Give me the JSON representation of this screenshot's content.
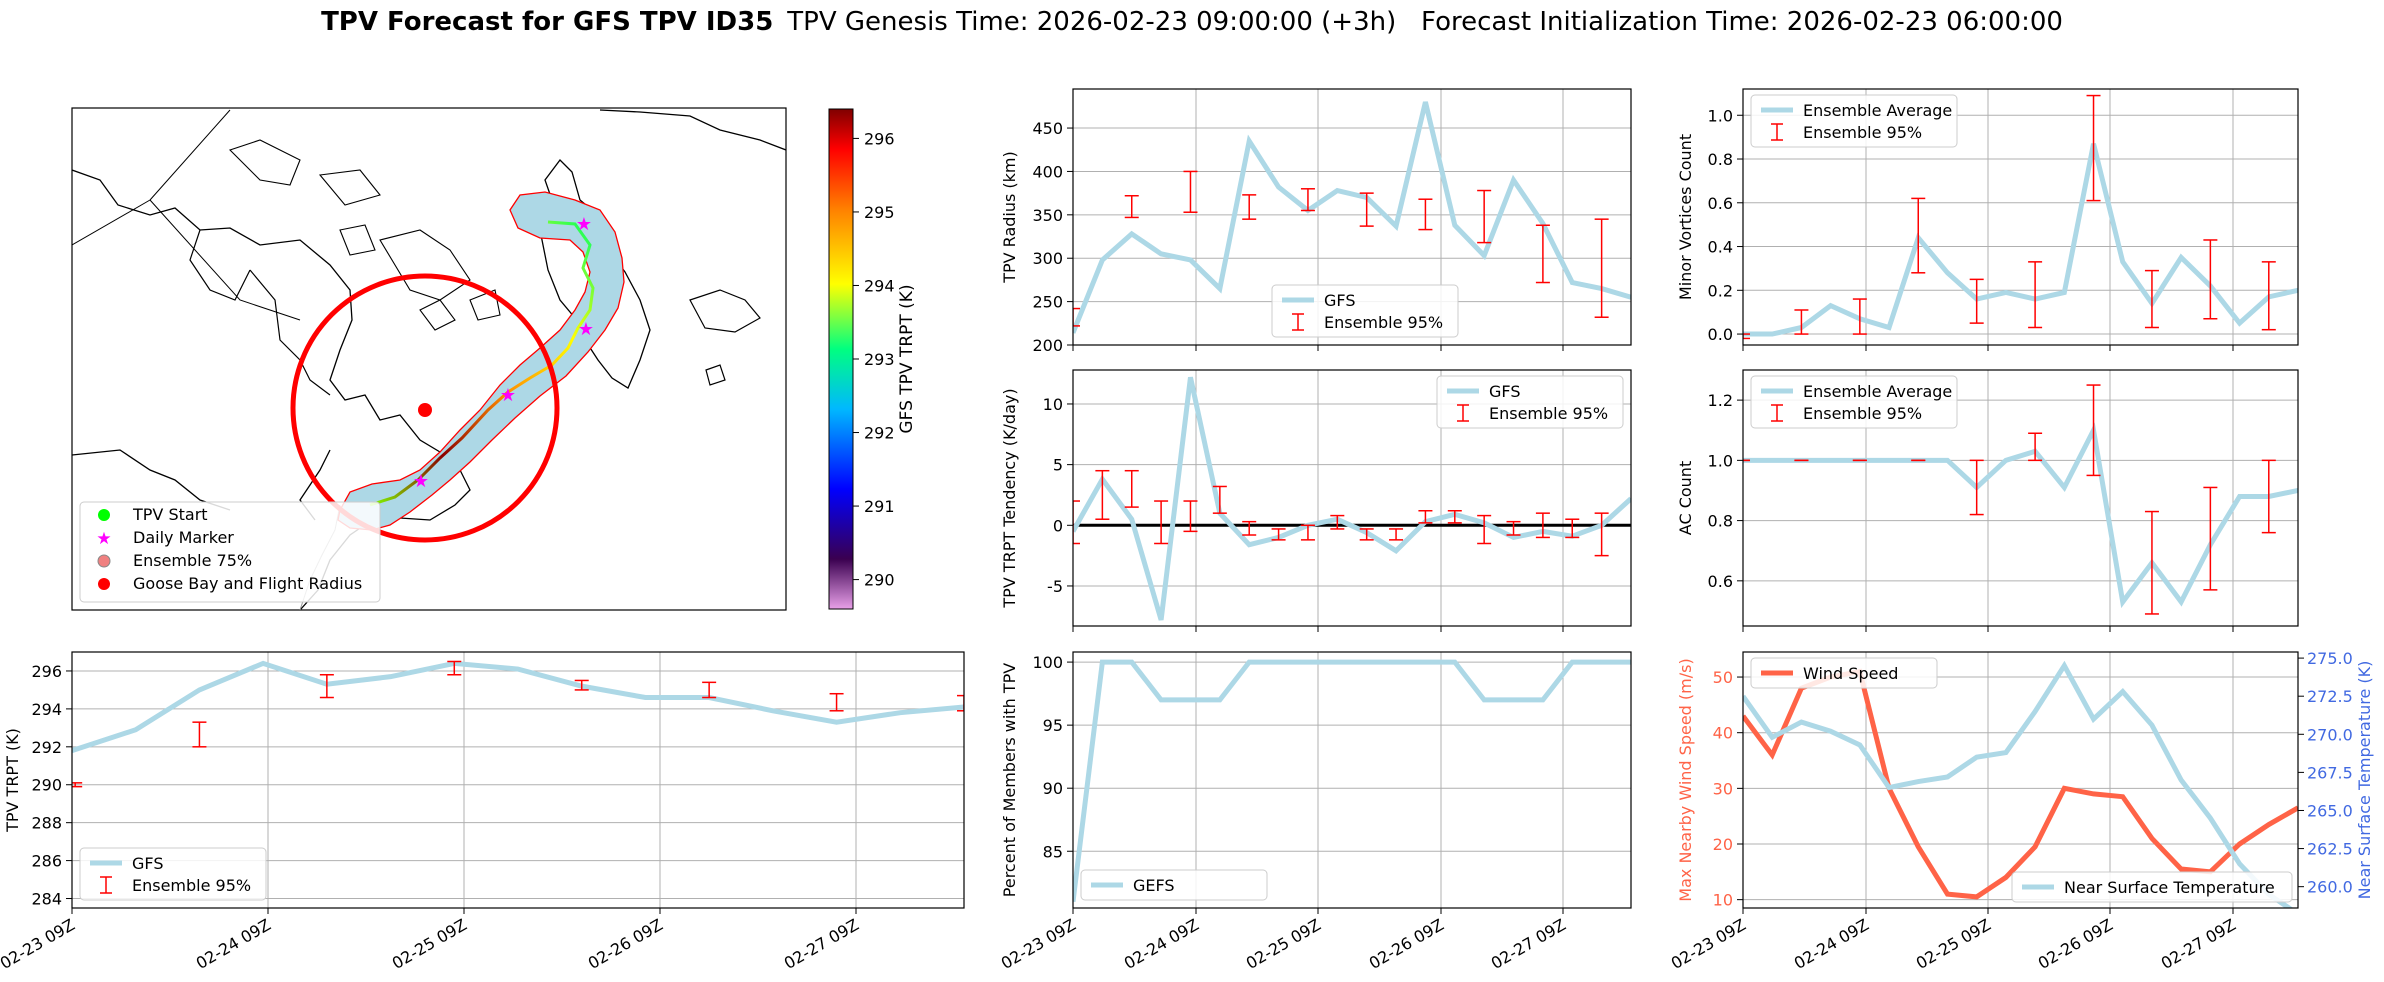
{
  "figure": {
    "title_bold": "TPV Forecast for GFS TPV ID35",
    "title_rest": "TPV Genesis Time: 2026-02-23 09:00:00 (+3h)   Forecast Initialization Time: 2026-02-23 06:00:00"
  },
  "x_ticks": [
    "02-23 09Z",
    "02-24 09Z",
    "02-25 09Z",
    "02-26 09Z",
    "02-27 09Z"
  ],
  "colors": {
    "gfs": "#add8e6",
    "ensemble": "#ff0000",
    "wind": "#ff6347",
    "temp_axis": "#4169e1",
    "zero_line": "#000000"
  },
  "map_panel": {
    "colorbar_label": "GFS TPV TRPT (K)",
    "colorbar_ticks": [
      "290",
      "291",
      "292",
      "293",
      "294",
      "295",
      "296"
    ],
    "colorbar_range": [
      289.6,
      296.4
    ],
    "legend": [
      "TPV Start",
      "Daily Marker",
      "Ensemble 75%",
      "Goose Bay and Flight Radius"
    ]
  },
  "chart_data": [
    {
      "id": "trpt",
      "type": "line",
      "title": "",
      "xlabel": "",
      "ylabel": "TPV TRPT (K)",
      "ylim": [
        283.5,
        297.0
      ],
      "yticks": [
        284,
        286,
        288,
        290,
        292,
        294,
        296
      ],
      "legend": [
        "GFS",
        "Ensemble 95%"
      ],
      "legend_loc": "lower-left",
      "x": [
        0,
        1,
        2,
        3,
        4,
        5,
        6,
        7,
        8,
        9,
        10,
        11,
        12,
        13,
        14
      ],
      "gfs": [
        291.8,
        292.9,
        295.0,
        296.4,
        295.3,
        295.7,
        296.4,
        296.1,
        295.2,
        294.6,
        294.6,
        293.9,
        293.3,
        293.8,
        294.1
      ],
      "ensemble": [
        {
          "x": 0.05,
          "lo": 289.9,
          "hi": 290.1
        },
        {
          "x": 2,
          "lo": 292.0,
          "hi": 293.3
        },
        {
          "x": 4,
          "lo": 294.6,
          "hi": 295.8
        },
        {
          "x": 6,
          "lo": 295.8,
          "hi": 296.5
        },
        {
          "x": 8,
          "lo": 295.0,
          "hi": 295.5
        },
        {
          "x": 10,
          "lo": 294.6,
          "hi": 295.4
        },
        {
          "x": 12,
          "lo": 293.9,
          "hi": 294.8
        },
        {
          "x": 14,
          "lo": 293.9,
          "hi": 294.7
        }
      ]
    },
    {
      "id": "radius",
      "type": "line",
      "title": "",
      "xlabel": "",
      "ylabel": "TPV Radius (km)",
      "ylim": [
        200,
        495
      ],
      "yticks": [
        200,
        250,
        300,
        350,
        400,
        450
      ],
      "legend": [
        "GFS",
        "Ensemble 95%"
      ],
      "legend_loc": "lower-center",
      "x": [
        0,
        1,
        2,
        3,
        4,
        5,
        6,
        7,
        8,
        9,
        10,
        11,
        12,
        13,
        14,
        15,
        16,
        17,
        18,
        19
      ],
      "gfs": [
        214,
        298,
        328,
        305,
        298,
        265,
        435,
        382,
        355,
        378,
        370,
        337,
        480,
        338,
        303,
        390,
        340,
        272,
        265,
        255
      ],
      "ensemble": [
        {
          "x": 0,
          "lo": 222,
          "hi": 242
        },
        {
          "x": 2,
          "lo": 347,
          "hi": 372
        },
        {
          "x": 4,
          "lo": 353,
          "hi": 400
        },
        {
          "x": 6,
          "lo": 345,
          "hi": 373
        },
        {
          "x": 8,
          "lo": 355,
          "hi": 380
        },
        {
          "x": 10,
          "lo": 337,
          "hi": 375
        },
        {
          "x": 12,
          "lo": 333,
          "hi": 368
        },
        {
          "x": 14,
          "lo": 318,
          "hi": 378
        },
        {
          "x": 16,
          "lo": 272,
          "hi": 338
        },
        {
          "x": 18,
          "lo": 232,
          "hi": 345
        }
      ]
    },
    {
      "id": "minor",
      "type": "line",
      "title": "",
      "xlabel": "",
      "ylabel": "Minor Vortices Count",
      "ylim": [
        -0.05,
        1.12
      ],
      "yticks": [
        0.0,
        0.2,
        0.4,
        0.6,
        0.8,
        1.0
      ],
      "legend": [
        "Ensemble Average",
        "Ensemble 95%"
      ],
      "legend_loc": "top-left",
      "x": [
        0,
        1,
        2,
        3,
        4,
        5,
        6,
        7,
        8,
        9,
        10,
        11,
        12,
        13,
        14,
        15,
        16,
        17,
        18,
        19
      ],
      "gfs": [
        0.0,
        0.0,
        0.03,
        0.13,
        0.07,
        0.03,
        0.44,
        0.28,
        0.16,
        0.19,
        0.16,
        0.19,
        0.87,
        0.33,
        0.14,
        0.35,
        0.22,
        0.05,
        0.17,
        0.2
      ],
      "ensemble": [
        {
          "x": 0,
          "lo": -0.02,
          "hi": 0.0
        },
        {
          "x": 2,
          "lo": 0.0,
          "hi": 0.11
        },
        {
          "x": 4,
          "lo": 0.0,
          "hi": 0.16
        },
        {
          "x": 6,
          "lo": 0.28,
          "hi": 0.62
        },
        {
          "x": 8,
          "lo": 0.05,
          "hi": 0.25
        },
        {
          "x": 10,
          "lo": 0.03,
          "hi": 0.33
        },
        {
          "x": 12,
          "lo": 0.61,
          "hi": 1.09
        },
        {
          "x": 14,
          "lo": 0.03,
          "hi": 0.29
        },
        {
          "x": 16,
          "lo": 0.07,
          "hi": 0.43
        },
        {
          "x": 18,
          "lo": 0.02,
          "hi": 0.33
        }
      ]
    },
    {
      "id": "tendency",
      "type": "line",
      "title": "",
      "xlabel": "",
      "ylabel": "TPV TRPT Tendency (K/day)",
      "ylim": [
        -8.3,
        12.8
      ],
      "yticks": [
        -5,
        0,
        5,
        10
      ],
      "legend": [
        "GFS",
        "Ensemble 95%"
      ],
      "legend_loc": "top-right",
      "x": [
        0,
        1,
        2,
        3,
        4,
        5,
        6,
        7,
        8,
        9,
        10,
        11,
        12,
        13,
        14,
        15,
        16,
        17,
        18,
        19
      ],
      "gfs": [
        -0.5,
        3.8,
        0.5,
        -7.8,
        12.2,
        1.0,
        -1.6,
        -1.0,
        0.0,
        0.5,
        -0.6,
        -2.1,
        0.3,
        0.9,
        0.2,
        -1.0,
        -0.5,
        -0.9,
        0.0,
        2.2
      ],
      "ensemble": [
        {
          "x": 0,
          "lo": -1.5,
          "hi": 2.0
        },
        {
          "x": 1,
          "lo": 0.5,
          "hi": 4.5
        },
        {
          "x": 2,
          "lo": 1.5,
          "hi": 4.5
        },
        {
          "x": 3,
          "lo": -1.5,
          "hi": 2.0
        },
        {
          "x": 4,
          "lo": -0.5,
          "hi": 2.0
        },
        {
          "x": 5,
          "lo": 1.0,
          "hi": 3.2
        },
        {
          "x": 6,
          "lo": -0.8,
          "hi": 0.3
        },
        {
          "x": 7,
          "lo": -1.2,
          "hi": -0.3
        },
        {
          "x": 8,
          "lo": -1.2,
          "hi": 0.0
        },
        {
          "x": 9,
          "lo": -0.3,
          "hi": 0.8
        },
        {
          "x": 10,
          "lo": -1.2,
          "hi": -0.3
        },
        {
          "x": 11,
          "lo": -1.2,
          "hi": -0.3
        },
        {
          "x": 12,
          "lo": 0.2,
          "hi": 1.2
        },
        {
          "x": 13,
          "lo": 0.2,
          "hi": 1.2
        },
        {
          "x": 14,
          "lo": -1.5,
          "hi": 0.8
        },
        {
          "x": 15,
          "lo": -0.8,
          "hi": 0.3
        },
        {
          "x": 16,
          "lo": -1.0,
          "hi": 1.0
        },
        {
          "x": 17,
          "lo": -1.0,
          "hi": 0.5
        },
        {
          "x": 18,
          "lo": -2.5,
          "hi": 1.0
        }
      ]
    },
    {
      "id": "ac",
      "type": "line",
      "title": "",
      "xlabel": "",
      "ylabel": "AC Count",
      "ylim": [
        0.45,
        1.3
      ],
      "yticks": [
        0.6,
        0.8,
        1.0,
        1.2
      ],
      "legend": [
        "Ensemble Average",
        "Ensemble 95%"
      ],
      "legend_loc": "top-left",
      "x": [
        0,
        1,
        2,
        3,
        4,
        5,
        6,
        7,
        8,
        9,
        10,
        11,
        12,
        13,
        14,
        15,
        16,
        17,
        18,
        19
      ],
      "gfs": [
        1.0,
        1.0,
        1.0,
        1.0,
        1.0,
        1.0,
        1.0,
        1.0,
        0.91,
        1.0,
        1.03,
        0.91,
        1.1,
        0.53,
        0.66,
        0.53,
        0.72,
        0.88,
        0.88,
        0.9
      ],
      "ensemble": [
        {
          "x": 0,
          "lo": 1.0,
          "hi": 1.0
        },
        {
          "x": 2,
          "lo": 1.0,
          "hi": 1.0
        },
        {
          "x": 4,
          "lo": 1.0,
          "hi": 1.0
        },
        {
          "x": 6,
          "lo": 1.0,
          "hi": 1.0
        },
        {
          "x": 8,
          "lo": 0.82,
          "hi": 1.0
        },
        {
          "x": 10,
          "lo": 1.0,
          "hi": 1.09
        },
        {
          "x": 12,
          "lo": 0.95,
          "hi": 1.25
        },
        {
          "x": 14,
          "lo": 0.49,
          "hi": 0.83
        },
        {
          "x": 16,
          "lo": 0.57,
          "hi": 0.91
        },
        {
          "x": 18,
          "lo": 0.76,
          "hi": 1.0
        }
      ]
    },
    {
      "id": "members",
      "type": "line",
      "title": "",
      "xlabel": "",
      "ylabel": "Percent of Members with TPV",
      "ylim": [
        80.5,
        100.8
      ],
      "yticks": [
        85,
        90,
        95,
        100
      ],
      "legend": [
        "GEFS"
      ],
      "legend_loc": "lower-left",
      "x": [
        0,
        1,
        2,
        3,
        4,
        5,
        6,
        7,
        8,
        9,
        10,
        11,
        12,
        13,
        14,
        15,
        16,
        17,
        18,
        19
      ],
      "gfs": [
        81,
        100,
        100,
        97,
        97,
        97,
        100,
        100,
        100,
        100,
        100,
        100,
        100,
        100,
        97,
        97,
        97,
        100,
        100,
        100
      ],
      "ensemble": []
    },
    {
      "id": "wind",
      "type": "line",
      "title": "",
      "xlabel": "",
      "ylabel": "Max Nearby Wind Speed (m/s)",
      "ylabel2": "Near Surface Temperature (K)",
      "ylim": [
        8.5,
        54.5
      ],
      "yticks": [
        10,
        20,
        30,
        40,
        50
      ],
      "ylim2": [
        258.6,
        275.4
      ],
      "yticks2": [
        260.0,
        262.5,
        265.0,
        267.5,
        270.0,
        272.5,
        275.0
      ],
      "legend": [
        "Wind Speed"
      ],
      "legend2": [
        "Near Surface Temperature"
      ],
      "legend_loc": "top-left",
      "legend2_loc": "lower-right",
      "x": [
        0,
        1,
        2,
        3,
        4,
        5,
        6,
        7,
        8,
        9,
        10,
        11,
        12,
        13,
        14,
        15,
        16,
        17,
        18,
        19
      ],
      "wind": [
        43,
        36,
        48,
        50,
        51,
        30,
        19.5,
        11,
        10.5,
        14,
        19.5,
        30,
        29,
        28.5,
        21,
        15.5,
        15,
        20,
        23.5,
        26.5
      ],
      "temp": [
        272.5,
        269.8,
        270.8,
        270.2,
        269.3,
        266.5,
        266.9,
        267.2,
        268.5,
        268.8,
        271.5,
        274.5,
        271.0,
        272.8,
        270.6,
        267.0,
        264.5,
        261.5,
        259.5,
        258.2
      ]
    }
  ]
}
